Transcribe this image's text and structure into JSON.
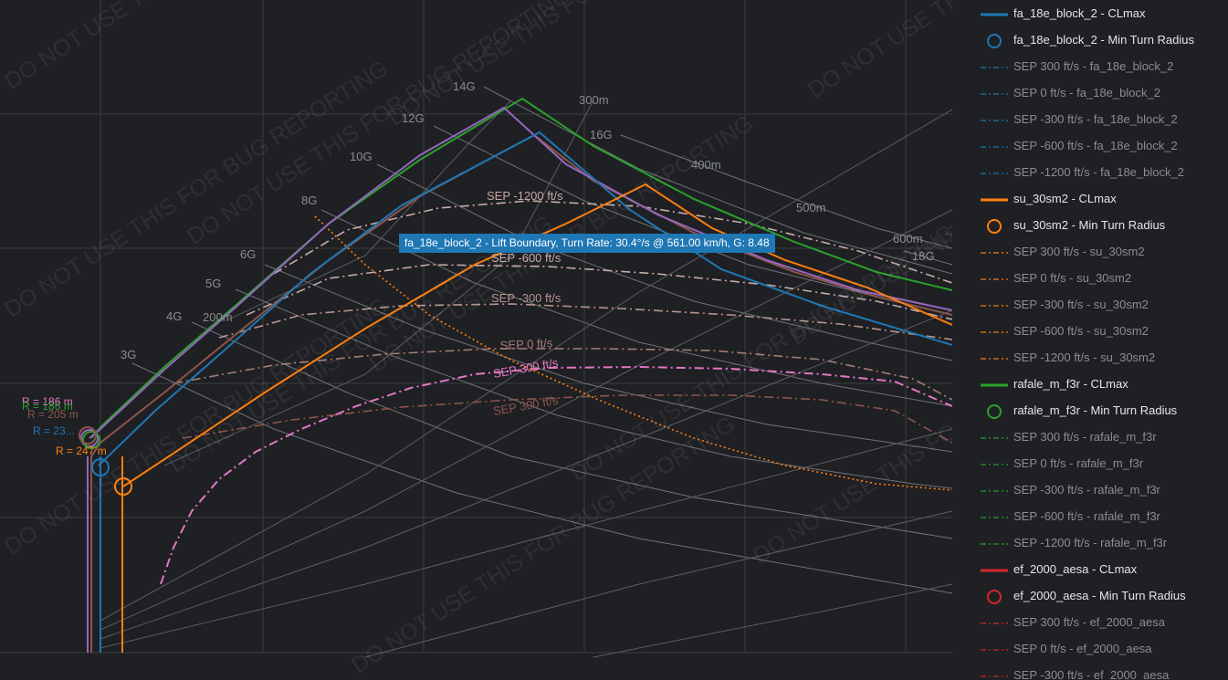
{
  "watermark": "DO NOT USE THIS FOR BUG REPORTING",
  "tooltip": "fa_18e_block_2 - Lift Boundary, Turn Rate: 30.4°/s @ 561.00 km/h, G: 8.48",
  "colors": {
    "background": "#1f2024",
    "fa_18e_block_2": "#1f77b4",
    "su_30sm2": "#ff7f0e",
    "rafale_m_f3r": "#2ca02c",
    "ef_2000_aesa": "#d62728",
    "purple": "#9467bd",
    "brown": "#8c564b",
    "pink": "#e377c2",
    "gridline": "#444"
  },
  "chart_data": {
    "type": "line",
    "xlabel": "",
    "ylabel": "",
    "grid": true,
    "legend_position": "right",
    "g_labels": [
      "3G",
      "4G",
      "5G",
      "6G",
      "8G",
      "10G",
      "12G",
      "14G",
      "16G",
      "18G"
    ],
    "radius_labels": [
      "200m",
      "300m",
      "400m",
      "500m",
      "600m"
    ],
    "radius_annotations": [
      {
        "text": "R = 186 m",
        "color": "#e377c2"
      },
      {
        "text": "R = 186 m",
        "color": "#2ca02c"
      },
      {
        "text": "R = 205 m",
        "color": "#8c564b"
      },
      {
        "text": "R = 23...",
        "color": "#1f77b4"
      },
      {
        "text": "R = 247 m",
        "color": "#ff7f0e"
      }
    ],
    "sep_labels": [
      {
        "text": "SEP -1200 ft/s",
        "color": "#c8aaa6"
      },
      {
        "text": "SEP -600 ft/s",
        "color": "#c8aaa6"
      },
      {
        "text": "SEP -300 ft/s",
        "color": "#b8948e"
      },
      {
        "text": "SEP 0 ft/s",
        "color": "#a57e75"
      },
      {
        "text": "SEP 300 ft/s",
        "color": "#e377c2"
      },
      {
        "text": "SEP 300 ft/s",
        "color": "#8c564b"
      }
    ],
    "series": [
      {
        "name": "fa_18e_block_2 - CLmax",
        "color": "#1f77b4",
        "style": "solid",
        "x": [
          247,
          254,
          262,
          274,
          290,
          306,
          322,
          338,
          355,
          372,
          388,
          404,
          419
        ],
        "y": [
          15.8,
          18.2,
          20.5,
          22.9,
          25.5,
          27.8,
          29.6,
          31.0,
          32.3,
          33.3,
          34.1,
          34.7,
          35.4
        ]
      },
      {
        "name": "su_30sm2 - CLmax",
        "color": "#ff7f0e",
        "style": "solid",
        "x": [
          265,
          271,
          279,
          289,
          301,
          314,
          328,
          343,
          358,
          373,
          389,
          404,
          422
        ],
        "y": [
          12.0,
          13.8,
          15.7,
          17.8,
          20.0,
          22.0,
          23.9,
          25.7,
          27.3,
          28.8,
          30.1,
          31.1,
          31.9
        ]
      },
      {
        "name": "rafale_m_f3r - CLmax",
        "color": "#2ca02c",
        "style": "solid",
        "x": [
          223,
          228,
          236,
          247,
          262,
          279,
          296,
          314,
          331,
          348,
          365,
          385,
          406
        ],
        "y": [
          20.0,
          21.8,
          23.6,
          25.8,
          28.4,
          31.1,
          33.8,
          36.1,
          38.5,
          40.5,
          42.3,
          43.6,
          44.6
        ]
      },
      {
        "name": "SEP 300 ft/s - su_30sm2",
        "color": "#e377c2",
        "style": "dashdot",
        "x": [
          284,
          290,
          300,
          315,
          335,
          357,
          380,
          400,
          420,
          441,
          458,
          470,
          485
        ],
        "y": [
          5.0,
          7.5,
          10.0,
          12.5,
          15.0,
          17.2,
          18.8,
          19.8,
          20.6,
          21.0,
          21.2,
          21.0,
          20.2
        ]
      }
    ]
  },
  "legend": {
    "items": [
      {
        "label": "fa_18e_block_2 - CLmax",
        "color": "#1f77b4",
        "kind": "line",
        "strong": true
      },
      {
        "label": "fa_18e_block_2 - Min Turn Radius",
        "color": "#1f77b4",
        "kind": "circle",
        "strong": true
      },
      {
        "label": "SEP 300 ft/s - fa_18e_block_2",
        "color": "#1f77b4",
        "kind": "dashdot",
        "strong": false
      },
      {
        "label": "SEP 0 ft/s - fa_18e_block_2",
        "color": "#1f77b4",
        "kind": "dashdot",
        "strong": false
      },
      {
        "label": "SEP -300 ft/s - fa_18e_block_2",
        "color": "#1f77b4",
        "kind": "dashdot",
        "strong": false
      },
      {
        "label": "SEP -600 ft/s - fa_18e_block_2",
        "color": "#1f77b4",
        "kind": "dashdot",
        "strong": false
      },
      {
        "label": "SEP -1200 ft/s - fa_18e_block_2",
        "color": "#1f77b4",
        "kind": "dashdot",
        "strong": false
      },
      {
        "label": "su_30sm2 - CLmax",
        "color": "#ff7f0e",
        "kind": "line",
        "strong": true
      },
      {
        "label": "su_30sm2 - Min Turn Radius",
        "color": "#ff7f0e",
        "kind": "circle",
        "strong": true
      },
      {
        "label": "SEP 300 ft/s - su_30sm2",
        "color": "#ff7f0e",
        "kind": "dashdot",
        "strong": false
      },
      {
        "label": "SEP 0 ft/s - su_30sm2",
        "color": "#ff7f0e",
        "kind": "dashdot",
        "strong": false
      },
      {
        "label": "SEP -300 ft/s - su_30sm2",
        "color": "#ff7f0e",
        "kind": "dashdot",
        "strong": false
      },
      {
        "label": "SEP -600 ft/s - su_30sm2",
        "color": "#ff7f0e",
        "kind": "dashdot",
        "strong": false
      },
      {
        "label": "SEP -1200 ft/s - su_30sm2",
        "color": "#ff7f0e",
        "kind": "dashdot",
        "strong": false
      },
      {
        "label": "rafale_m_f3r - CLmax",
        "color": "#2ca02c",
        "kind": "line",
        "strong": true
      },
      {
        "label": "rafale_m_f3r - Min Turn Radius",
        "color": "#2ca02c",
        "kind": "circle",
        "strong": true
      },
      {
        "label": "SEP 300 ft/s - rafale_m_f3r",
        "color": "#2ca02c",
        "kind": "dashdot",
        "strong": false
      },
      {
        "label": "SEP 0 ft/s - rafale_m_f3r",
        "color": "#2ca02c",
        "kind": "dashdot",
        "strong": false
      },
      {
        "label": "SEP -300 ft/s - rafale_m_f3r",
        "color": "#2ca02c",
        "kind": "dashdot",
        "strong": false
      },
      {
        "label": "SEP -600 ft/s - rafale_m_f3r",
        "color": "#2ca02c",
        "kind": "dashdot",
        "strong": false
      },
      {
        "label": "SEP -1200 ft/s - rafale_m_f3r",
        "color": "#2ca02c",
        "kind": "dashdot",
        "strong": false
      },
      {
        "label": "ef_2000_aesa - CLmax",
        "color": "#d62728",
        "kind": "line",
        "strong": true
      },
      {
        "label": "ef_2000_aesa - Min Turn Radius",
        "color": "#d62728",
        "kind": "circle",
        "strong": true
      },
      {
        "label": "SEP 300 ft/s - ef_2000_aesa",
        "color": "#d62728",
        "kind": "dashdot",
        "strong": false
      },
      {
        "label": "SEP 0 ft/s - ef_2000_aesa",
        "color": "#d62728",
        "kind": "dashdot",
        "strong": false
      },
      {
        "label": "SEP -300 ft/s - ef_2000_aesa",
        "color": "#d62728",
        "kind": "dashdot",
        "strong": false
      }
    ]
  }
}
